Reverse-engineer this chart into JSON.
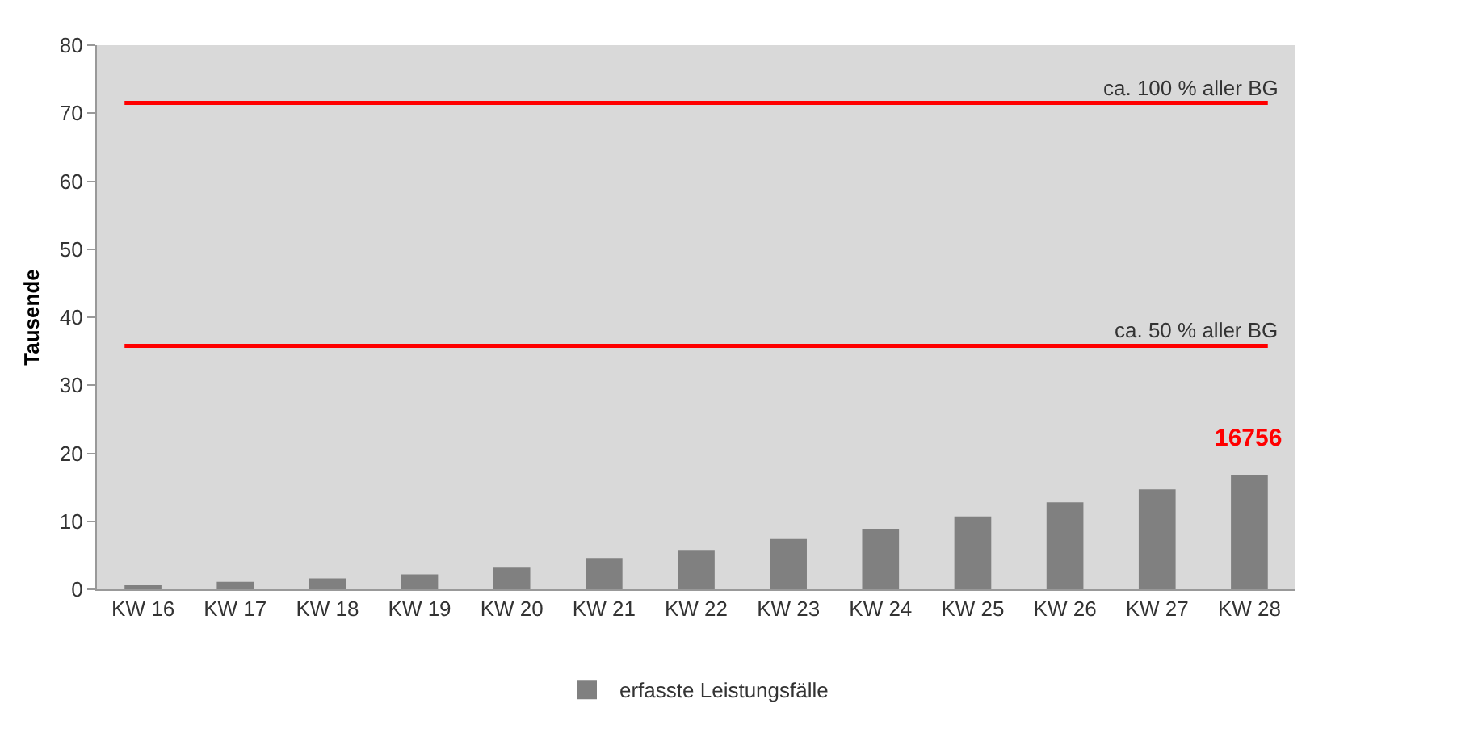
{
  "chart_data": {
    "type": "bar",
    "ylabel": "Tausende",
    "categories": [
      "KW 16",
      "KW 17",
      "KW 18",
      "KW 19",
      "KW 20",
      "KW 21",
      "KW 22",
      "KW 23",
      "KW 24",
      "KW 25",
      "KW 26",
      "KW 27",
      "KW 28"
    ],
    "series": [
      {
        "name": "erfasste Leistungsfälle",
        "color": "#808080",
        "values": [
          0.6,
          1.1,
          1.6,
          2.2,
          3.3,
          4.6,
          5.8,
          7.4,
          8.9,
          10.7,
          12.8,
          14.7,
          16.8
        ]
      }
    ],
    "annotations": [
      {
        "text": "16756",
        "x": "KW 28",
        "y": 16.8
      }
    ],
    "ylim": [
      0,
      80
    ],
    "yticks": [
      0,
      10,
      20,
      30,
      40,
      50,
      60,
      70,
      80
    ],
    "grid": false,
    "legend": "bottom",
    "ref_lines": [
      {
        "axis": "y",
        "value": 71.5,
        "label": "ca. 100 % aller BG",
        "color": "#ff0000"
      },
      {
        "axis": "y",
        "value": 35.8,
        "label": "ca. 50 % aller BG",
        "color": "#ff0000"
      }
    ]
  }
}
